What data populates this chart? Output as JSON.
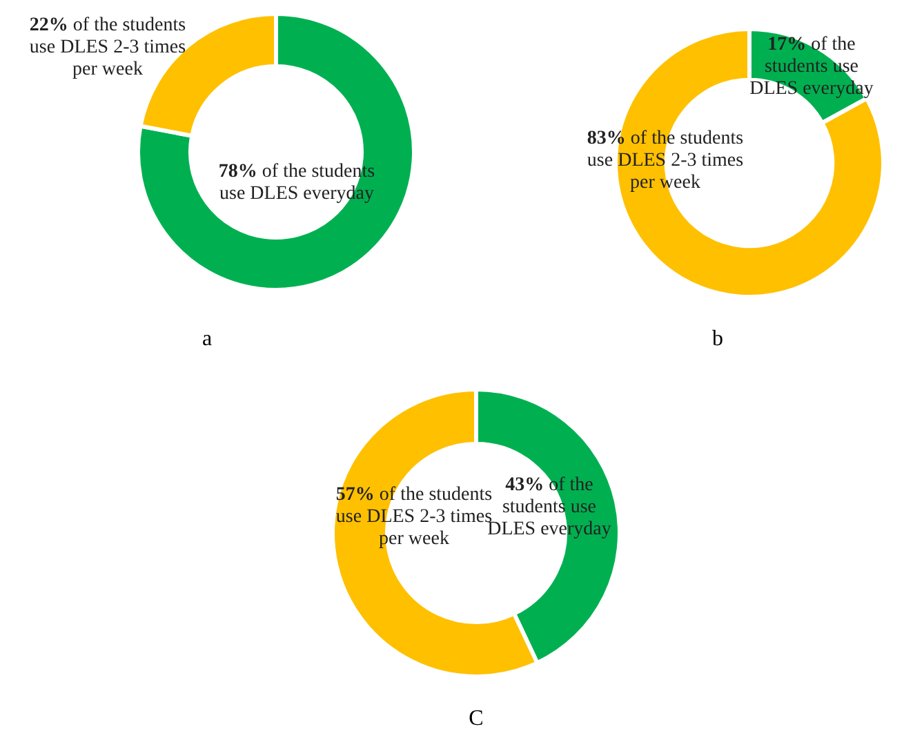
{
  "chart_data": [
    {
      "type": "donut",
      "xlabel": "a",
      "categories": [
        "of the students use DLES everyday",
        "of the students use DLES 2-3 times per week"
      ],
      "values": [
        78,
        22
      ],
      "value_labels": [
        "78%",
        "22%"
      ],
      "colors": [
        "#00b050",
        "#ffc000"
      ]
    },
    {
      "type": "donut",
      "xlabel": "b",
      "categories": [
        "of the students use DLES everyday",
        "of the students use DLES 2-3 times per week"
      ],
      "values": [
        17,
        83
      ],
      "value_labels": [
        "17%",
        "83%"
      ],
      "colors": [
        "#00b050",
        "#ffc000"
      ]
    },
    {
      "type": "donut",
      "xlabel": "C",
      "categories": [
        "of the students use DLES everyday",
        "of the students use DLES 2-3 times per week"
      ],
      "values": [
        43,
        57
      ],
      "value_labels": [
        "43%",
        "57%"
      ],
      "colors": [
        "#00b050",
        "#ffc000"
      ]
    }
  ]
}
